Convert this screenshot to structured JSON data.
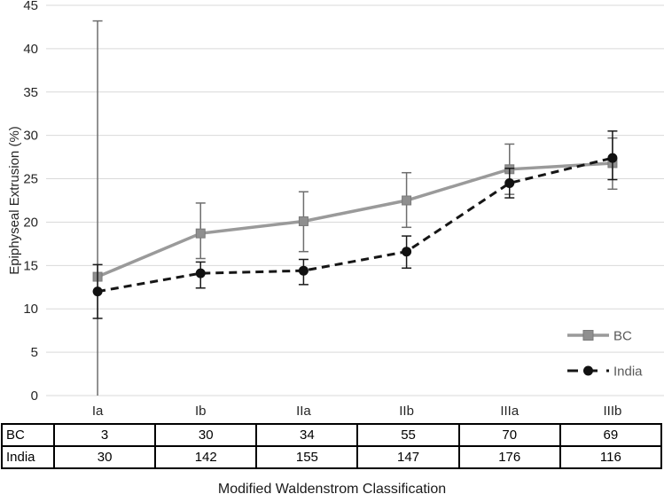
{
  "chart_data": {
    "type": "line",
    "title": "",
    "xlabel": "Modified Waldenstrom Classification",
    "ylabel": "Epiphyseal Extrusion (%)",
    "ylim": [
      0,
      45
    ],
    "ytick_step": 5,
    "grid": true,
    "legend_position": "right-lower-inside",
    "categories": [
      "Ia",
      "Ib",
      "IIa",
      "IIb",
      "IIIa",
      "IIIb"
    ],
    "series": [
      {
        "name": "BC",
        "color": "#9a9a9a",
        "marker": "square",
        "marker_color": "#8f8f8f",
        "error_bar_color": "#6e6e6e",
        "line_style": "solid",
        "values": [
          13.7,
          18.7,
          20.1,
          22.5,
          26.1,
          26.8
        ],
        "err_upper": [
          43.2,
          22.2,
          23.5,
          25.7,
          29.0,
          29.7
        ],
        "err_lower": [
          0,
          15.8,
          16.6,
          19.4,
          23.2,
          23.8
        ]
      },
      {
        "name": "India",
        "color": "#161616",
        "marker": "circle",
        "marker_color": "#111111",
        "error_bar_color": "#1a1a1a",
        "line_style": "dashed",
        "values": [
          12.0,
          14.1,
          14.4,
          16.6,
          24.5,
          27.4
        ],
        "err_upper": [
          15.1,
          15.4,
          15.7,
          18.4,
          26.2,
          30.5
        ],
        "err_lower": [
          8.9,
          12.4,
          12.8,
          14.7,
          22.8,
          24.9
        ]
      }
    ],
    "colors": {
      "gridline": "#d9d9d9",
      "tick_text": "#262626",
      "legend_text": "#595959"
    }
  },
  "table": {
    "rows": [
      {
        "label": "BC",
        "values": [
          "3",
          "30",
          "34",
          "55",
          "70",
          "69"
        ]
      },
      {
        "label": "India",
        "values": [
          "30",
          "142",
          "155",
          "147",
          "176",
          "116"
        ]
      }
    ]
  }
}
